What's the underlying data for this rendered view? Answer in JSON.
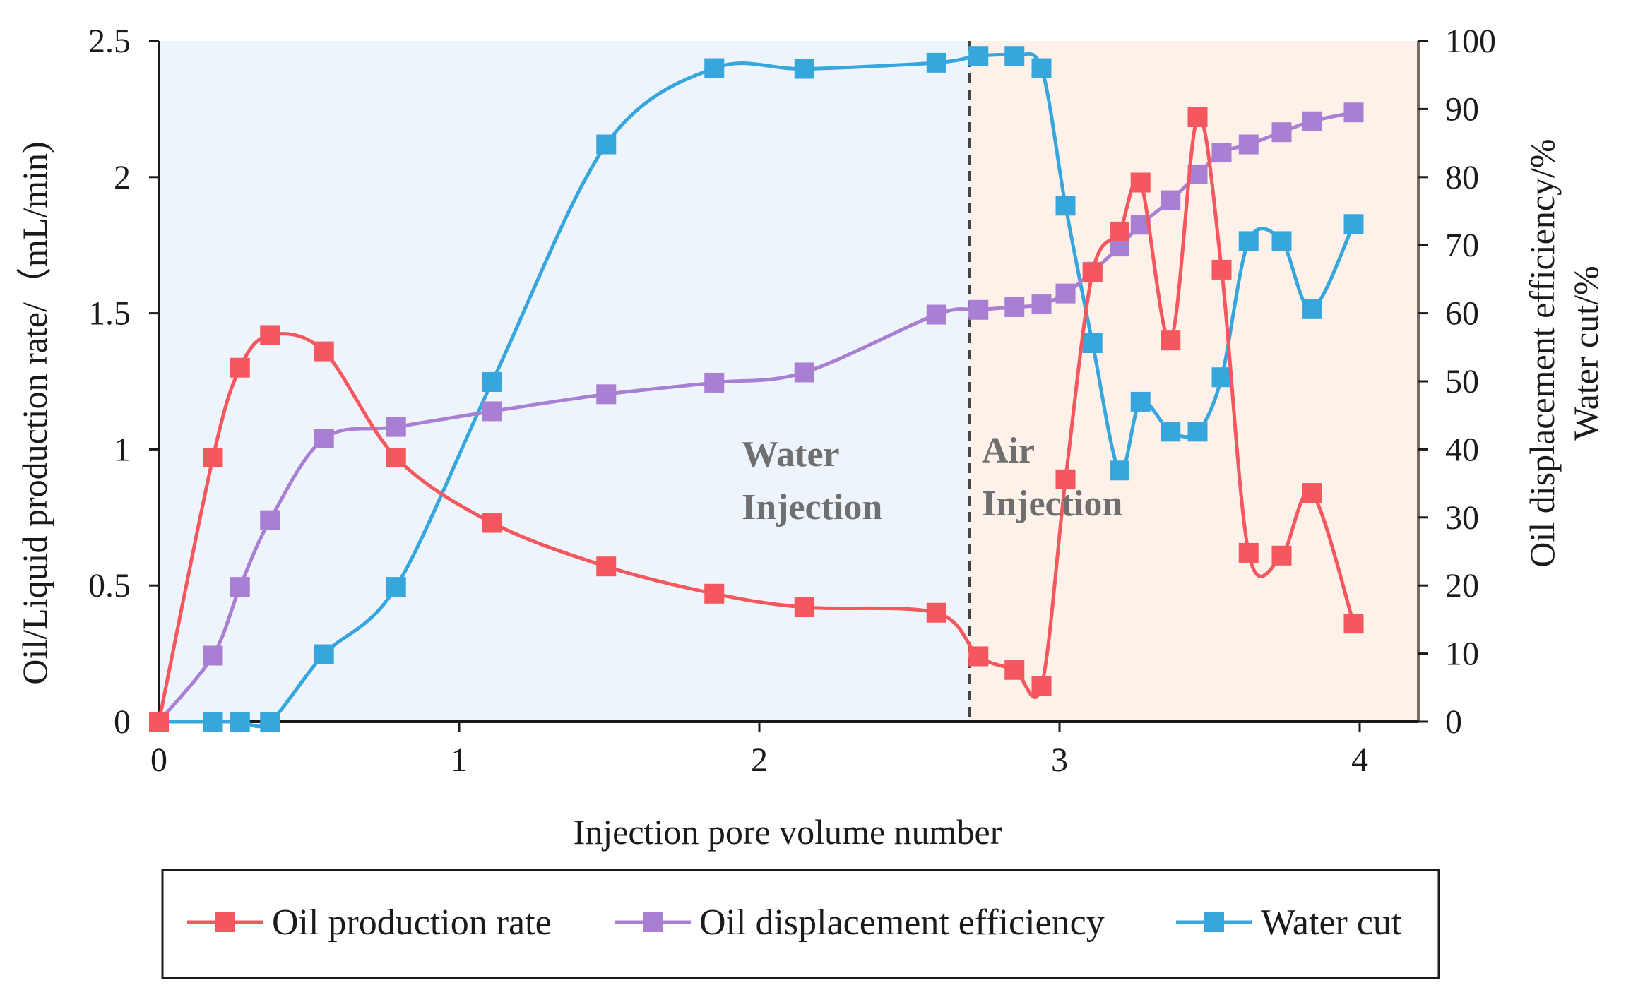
{
  "chart_data": {
    "type": "line",
    "xlabel": "Injection pore volume number",
    "ylabel_left": "Oil/Liquid production rate/（mL/min)",
    "ylabel_right": [
      "Oil displacement efficiency/%",
      "Water cut/%"
    ],
    "xlim": [
      0,
      4.2
    ],
    "ylim_left": [
      0,
      2.5
    ],
    "ylim_right": [
      0,
      100
    ],
    "x_ticks": [
      "0",
      "1",
      "2",
      "3",
      "4"
    ],
    "y_left_ticks": [
      "0",
      "0.5",
      "1",
      "1.5",
      "2",
      "2.5"
    ],
    "y_right_ticks": [
      "0",
      "10",
      "20",
      "30",
      "40",
      "50",
      "60",
      "70",
      "80",
      "90",
      "100"
    ],
    "regions": [
      {
        "label_lines": [
          "Water",
          "Injection"
        ],
        "x_start": 0,
        "x_end": 2.7,
        "color": "#eef4fb"
      },
      {
        "label_lines": [
          "Air",
          "Injection"
        ],
        "x_start": 2.7,
        "x_end": 4.2,
        "color": "#fdf1ea"
      }
    ],
    "divider_x": 2.7,
    "legend_position": "bottom",
    "series": [
      {
        "name": "Oil production rate",
        "axis": "left",
        "color": "#f4585e",
        "points": [
          [
            0,
            0
          ],
          [
            0.18,
            0.97
          ],
          [
            0.27,
            1.3
          ],
          [
            0.37,
            1.42
          ],
          [
            0.55,
            1.36
          ],
          [
            0.79,
            0.97
          ],
          [
            1.11,
            0.73
          ],
          [
            1.49,
            0.57
          ],
          [
            1.85,
            0.47
          ],
          [
            2.15,
            0.42
          ],
          [
            2.59,
            0.4
          ],
          [
            2.73,
            0.24
          ],
          [
            2.85,
            0.19
          ],
          [
            2.94,
            0.13
          ],
          [
            3.02,
            0.89
          ],
          [
            3.11,
            1.65
          ],
          [
            3.2,
            1.8
          ],
          [
            3.27,
            1.98
          ],
          [
            3.37,
            1.4
          ],
          [
            3.46,
            2.22
          ],
          [
            3.54,
            1.66
          ],
          [
            3.63,
            0.62
          ],
          [
            3.74,
            0.61
          ],
          [
            3.84,
            0.84
          ],
          [
            3.98,
            0.36
          ]
        ]
      },
      {
        "name": "Oil displacement efficiency",
        "axis": "right",
        "color": "#a97fd3",
        "points": [
          [
            0,
            0
          ],
          [
            0.18,
            9.7
          ],
          [
            0.27,
            19.8
          ],
          [
            0.37,
            29.6
          ],
          [
            0.55,
            41.6
          ],
          [
            0.79,
            43.3
          ],
          [
            1.11,
            45.6
          ],
          [
            1.49,
            48.1
          ],
          [
            1.85,
            49.8
          ],
          [
            2.15,
            51.3
          ],
          [
            2.59,
            59.8
          ],
          [
            2.73,
            60.5
          ],
          [
            2.85,
            60.9
          ],
          [
            2.94,
            61.3
          ],
          [
            3.02,
            62.9
          ],
          [
            3.11,
            66.1
          ],
          [
            3.2,
            69.8
          ],
          [
            3.27,
            73.0
          ],
          [
            3.37,
            76.6
          ],
          [
            3.46,
            80.4
          ],
          [
            3.54,
            83.6
          ],
          [
            3.63,
            84.8
          ],
          [
            3.74,
            86.6
          ],
          [
            3.84,
            88.2
          ],
          [
            3.98,
            89.5
          ]
        ]
      },
      {
        "name": "Water cut",
        "axis": "right",
        "color": "#36a6dc",
        "points": [
          [
            0,
            0
          ],
          [
            0.18,
            0
          ],
          [
            0.27,
            0
          ],
          [
            0.37,
            0
          ],
          [
            0.55,
            9.9
          ],
          [
            0.79,
            19.8
          ],
          [
            1.11,
            49.9
          ],
          [
            1.49,
            84.8
          ],
          [
            1.85,
            96.0
          ],
          [
            2.15,
            95.9
          ],
          [
            2.59,
            96.8
          ],
          [
            2.73,
            97.8
          ],
          [
            2.85,
            97.8
          ],
          [
            2.94,
            96.0
          ],
          [
            3.02,
            75.8
          ],
          [
            3.11,
            55.6
          ],
          [
            3.2,
            36.9
          ],
          [
            3.27,
            47.0
          ],
          [
            3.37,
            42.6
          ],
          [
            3.46,
            42.6
          ],
          [
            3.54,
            50.6
          ],
          [
            3.63,
            70.6
          ],
          [
            3.74,
            70.6
          ],
          [
            3.84,
            60.6
          ],
          [
            3.98,
            73.1
          ]
        ]
      }
    ]
  }
}
